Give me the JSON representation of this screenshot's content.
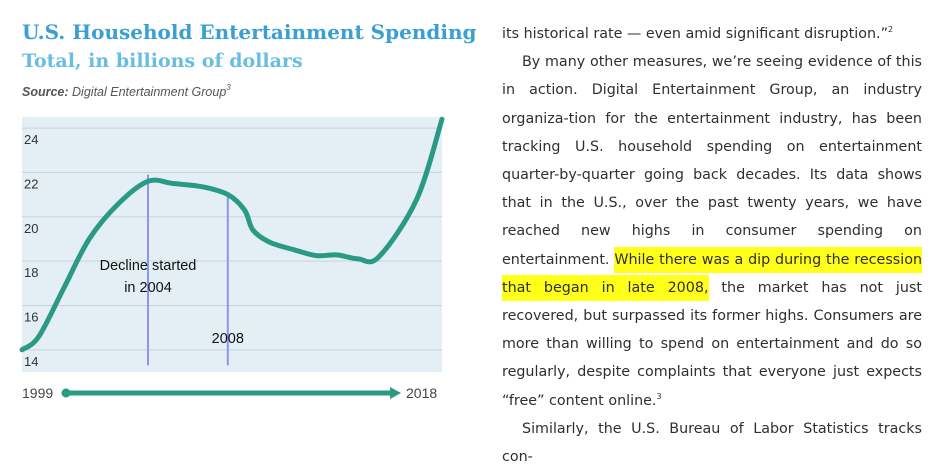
{
  "figure": {
    "title": "U.S. Household Entertainment Spending",
    "subtitle": "Total, in billions of dollars",
    "source_label": "Source:",
    "source_text": "Digital Entertainment Group",
    "source_ref": "3"
  },
  "chart_data": {
    "type": "line",
    "title": "U.S. Household Entertainment Spending",
    "subtitle": "Total, in billions of dollars",
    "x_labels": [
      "1999",
      "2018"
    ],
    "ylim": [
      13,
      24.5
    ],
    "yticks": [
      14,
      16,
      18,
      20,
      22,
      24
    ],
    "grid": true,
    "series": [
      {
        "color": "#2a9a84",
        "points": [
          [
            0.0,
            14.0
          ],
          [
            0.04,
            14.6
          ],
          [
            0.1,
            16.8
          ],
          [
            0.16,
            19.0
          ],
          [
            0.23,
            20.6
          ],
          [
            0.3,
            21.6
          ],
          [
            0.36,
            21.5
          ],
          [
            0.43,
            21.35
          ],
          [
            0.49,
            21.0
          ],
          [
            0.53,
            20.3
          ],
          [
            0.55,
            19.4
          ],
          [
            0.59,
            18.85
          ],
          [
            0.65,
            18.5
          ],
          [
            0.7,
            18.25
          ],
          [
            0.75,
            18.28
          ],
          [
            0.8,
            18.1
          ],
          [
            0.85,
            18.2
          ],
          [
            0.94,
            20.8
          ],
          [
            1.0,
            24.4
          ]
        ]
      }
    ],
    "annotations": [
      {
        "text": "Decline started",
        "x": 0.3,
        "y": 17.6
      },
      {
        "text": "in 2004",
        "x": 0.3,
        "y": 16.6
      },
      {
        "text": "2008",
        "x": 0.49,
        "y": 14.3
      }
    ],
    "markers": [
      {
        "x": 0.3,
        "y_from": 13.3,
        "y_to": 21.9
      },
      {
        "x": 0.49,
        "y_from": 13.3,
        "y_to": 20.9
      }
    ],
    "timeline": {
      "start": "1999",
      "end": "2018",
      "color": "#2a9a84"
    }
  },
  "article": {
    "p1": "its historical rate — even amid significant disruption.”",
    "p1_ref": "2",
    "p2_before": "By many other measures, we’re seeing evidence of this in action. Digital Entertainment Group, an industry organiza-tion for the entertainment industry, has been tracking U.S. household spending on entertainment quarter-by-quarter going back decades. Its data shows that in the U.S., over the past twenty years, we have reached new highs in consumer spending on entertainment. ",
    "p2_highlight": "While there was a dip during the recession that began in late 2008,",
    "p2_after": " the market has not just recovered, but surpassed its former highs. Consumers are more than willing to spend on entertainment and do so regularly, despite complaints that everyone just expects “free” content online.",
    "p2_ref": "3",
    "p3": "Similarly, the U.S. Bureau of Labor Statistics tracks con-"
  },
  "colors": {
    "title": "#3a9fd1",
    "subtitle": "#69bde3",
    "plot_background": "#e3eff4",
    "gridline": "#c6d3da",
    "line": "#2a9a84",
    "marker": "#8c95f2",
    "highlight": "#ffff1a"
  }
}
